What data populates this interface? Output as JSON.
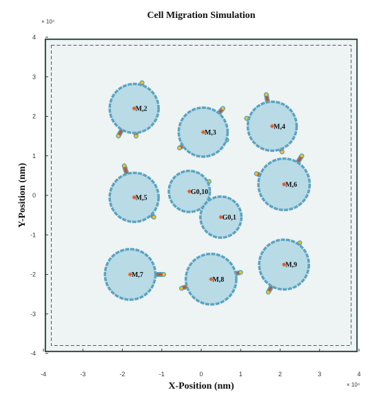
{
  "chart_data": {
    "type": "scatter",
    "title": "Cell Migration Simulation",
    "xlabel": "X-Position (nm)",
    "ylabel": "Y-Position (nm)",
    "x_exponent_label": "× 10⁴",
    "y_exponent_label": "× 10⁴",
    "xlim": [
      -4.1,
      4.1
    ],
    "ylim": [
      -4.1,
      4.1
    ],
    "xticks": [
      -4,
      -3,
      -2,
      -1,
      0,
      1,
      2,
      3,
      4
    ],
    "yticks": [
      -4,
      -3,
      -2,
      -1,
      0,
      1,
      2,
      3,
      4
    ],
    "grid": false,
    "boundary_outer": [
      -3.95,
      3.95,
      -3.95,
      3.95
    ],
    "boundary_inner": [
      -3.8,
      3.8,
      -3.8,
      3.8
    ],
    "colors": {
      "cell_fill": "#b9dbe6",
      "cell_edge": "#5aa4c2",
      "protrusion_core": "#c0552b",
      "protrusion_tip": "#f2c11c",
      "center_marker": "#e2571e",
      "arena_fill": "#eef3f3",
      "arena_edge": "#2f4a45"
    },
    "cells": [
      {
        "label": "M,2",
        "x": -1.7,
        "y": 2.2,
        "r": 0.62,
        "protrusions": [
          [
            -2.1,
            1.5
          ],
          [
            -1.65,
            1.5
          ],
          [
            -1.5,
            2.85
          ]
        ]
      },
      {
        "label": "M,3",
        "x": 0.05,
        "y": 1.6,
        "r": 0.62,
        "protrusions": [
          [
            0.55,
            2.2
          ],
          [
            -0.55,
            1.2
          ],
          [
            0.65,
            1.4
          ]
        ]
      },
      {
        "label": "M,4",
        "x": 1.8,
        "y": 1.75,
        "r": 0.62,
        "protrusions": [
          [
            1.65,
            2.55
          ],
          [
            1.15,
            1.95
          ],
          [
            2.05,
            1.1
          ]
        ]
      },
      {
        "label": "M,5",
        "x": -1.7,
        "y": -0.05,
        "r": 0.62,
        "protrusions": [
          [
            -1.95,
            0.75
          ],
          [
            -1.2,
            -0.55
          ]
        ]
      },
      {
        "label": "G0,10",
        "x": -0.3,
        "y": 0.1,
        "r": 0.52,
        "protrusions": [
          [
            0.2,
            0.35
          ]
        ]
      },
      {
        "label": "G0,1",
        "x": 0.5,
        "y": -0.55,
        "r": 0.52,
        "protrusions": []
      },
      {
        "label": "M,6",
        "x": 2.1,
        "y": 0.28,
        "r": 0.65,
        "protrusions": [
          [
            2.55,
            1.0
          ],
          [
            1.4,
            0.55
          ]
        ]
      },
      {
        "label": "M,7",
        "x": -1.8,
        "y": -2.0,
        "r": 0.64,
        "protrusions": [
          [
            -0.95,
            -2.0
          ]
        ]
      },
      {
        "label": "M,8",
        "x": 0.25,
        "y": -2.12,
        "r": 0.64,
        "protrusions": [
          [
            -0.5,
            -2.35
          ],
          [
            1.0,
            -1.95
          ]
        ]
      },
      {
        "label": "M,9",
        "x": 2.1,
        "y": -1.75,
        "r": 0.63,
        "protrusions": [
          [
            1.7,
            -2.45
          ],
          [
            2.5,
            -1.2
          ]
        ]
      }
    ]
  }
}
